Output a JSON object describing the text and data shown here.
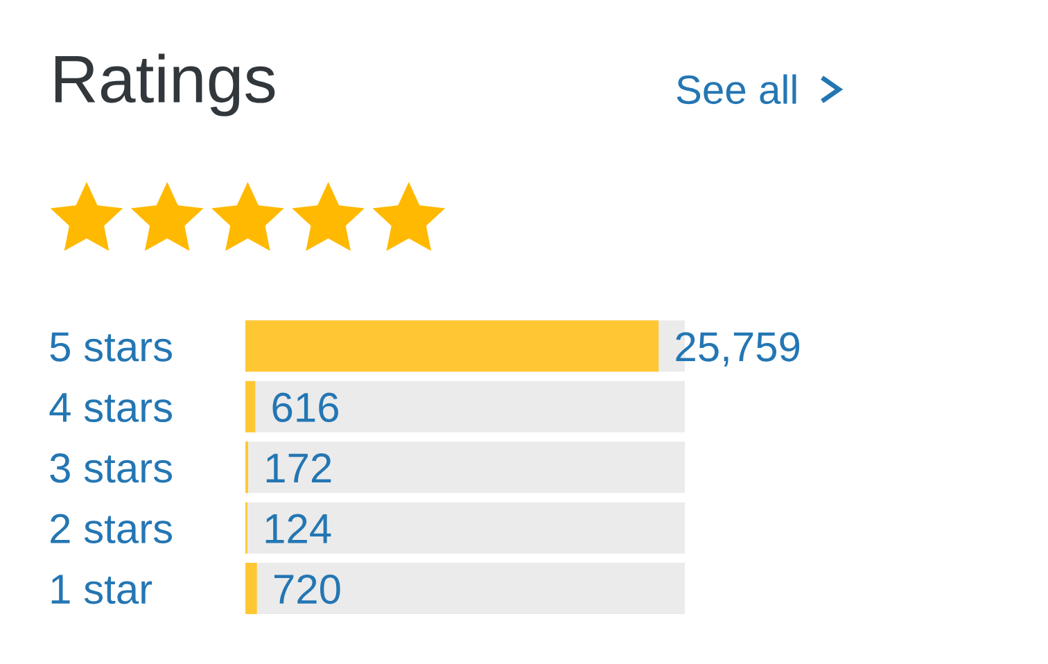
{
  "chart_data": {
    "type": "bar",
    "orientation": "horizontal",
    "title": "Ratings",
    "annotations": [
      "See all"
    ],
    "categories": [
      "5 stars",
      "4 stars",
      "3 stars",
      "2 stars",
      "1 star"
    ],
    "values": [
      25759,
      616,
      172,
      124,
      720
    ],
    "value_labels": [
      "25,759",
      "616",
      "172",
      "124",
      "720"
    ],
    "color": "#ffc733",
    "xlim": [
      0,
      27391
    ],
    "tick_labels": "y"
  }
}
